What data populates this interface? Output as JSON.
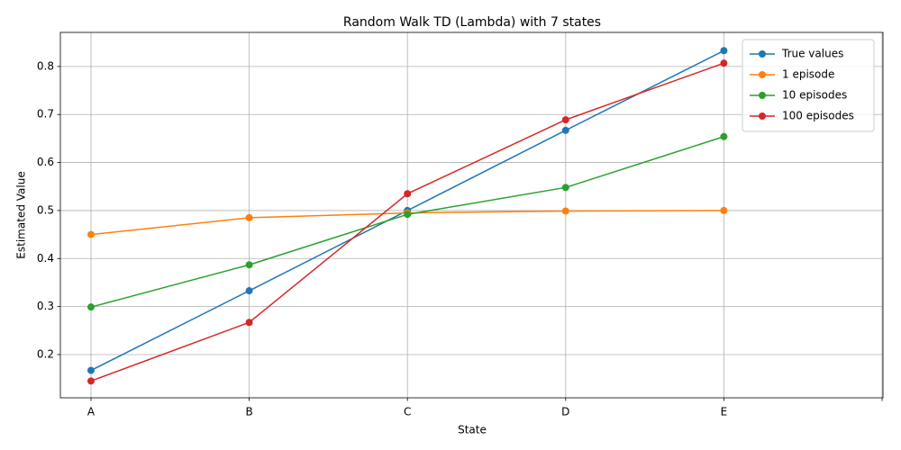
{
  "chart_data": {
    "type": "line",
    "title": "Random Walk TD (Lambda) with 7 states",
    "xlabel": "State",
    "ylabel": "Estimated Value",
    "categories": [
      "A",
      "B",
      "C",
      "D",
      "E",
      null
    ],
    "series": [
      {
        "name": "True values",
        "color": "#1f77b4",
        "values": [
          0.167,
          0.333,
          0.5,
          0.667,
          0.833,
          null
        ]
      },
      {
        "name": "1 episode",
        "color": "#ff7f0e",
        "values": [
          0.45,
          0.485,
          0.495,
          0.499,
          0.5,
          null
        ]
      },
      {
        "name": "10 episodes",
        "color": "#2ca02c",
        "values": [
          0.299,
          0.387,
          0.492,
          0.548,
          0.654,
          null
        ]
      },
      {
        "name": "100 episodes",
        "color": "#d62728",
        "values": [
          0.145,
          0.267,
          0.535,
          0.689,
          0.807,
          null
        ]
      }
    ],
    "ylim": [
      0.11,
      0.871
    ],
    "yticks": [
      0.2,
      0.3,
      0.4,
      0.5,
      0.6,
      0.7,
      0.8
    ],
    "grid": true,
    "legend": "upper right"
  }
}
